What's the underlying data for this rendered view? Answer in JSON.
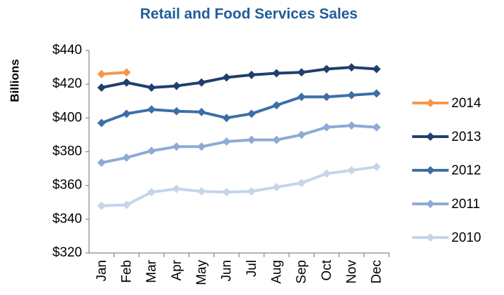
{
  "chart_data": {
    "type": "line",
    "title": "Retail and Food Services Sales",
    "y_label": "Billions",
    "categories": [
      "Jan",
      "Feb",
      "Mar",
      "Apr",
      "May",
      "Jun",
      "Jul",
      "Aug",
      "Sep",
      "Oct",
      "Nov",
      "Dec"
    ],
    "series": [
      {
        "name": "2014",
        "color": "#f79646",
        "values": [
          426,
          427,
          null,
          null,
          null,
          null,
          null,
          null,
          null,
          null,
          null,
          null
        ]
      },
      {
        "name": "2013",
        "color": "#1f3f6e",
        "values": [
          418,
          421,
          418,
          419,
          421,
          424,
          425.5,
          426.5,
          427,
          429,
          430,
          429
        ]
      },
      {
        "name": "2012",
        "color": "#3d6ea8",
        "values": [
          397,
          402.5,
          405,
          404,
          403.5,
          400,
          402.5,
          407.5,
          412.5,
          412.5,
          413.5,
          414.5
        ]
      },
      {
        "name": "2011",
        "color": "#8eaad6",
        "values": [
          373.5,
          376.5,
          380.5,
          383,
          383,
          386,
          387,
          387,
          390,
          394.5,
          395.5,
          394.5
        ]
      },
      {
        "name": "2010",
        "color": "#c5d5ea",
        "values": [
          348,
          348.5,
          356,
          358,
          356.5,
          356,
          356.5,
          359,
          361.5,
          367,
          369,
          371
        ]
      }
    ],
    "ylim": [
      320,
      440
    ],
    "yticks": [
      {
        "value": 320,
        "label": "$320"
      },
      {
        "value": 340,
        "label": "$340"
      },
      {
        "value": 360,
        "label": "$360"
      },
      {
        "value": 380,
        "label": "$380"
      },
      {
        "value": 400,
        "label": "$400"
      },
      {
        "value": 420,
        "label": "$420"
      },
      {
        "value": 440,
        "label": "$440"
      }
    ],
    "grid": false,
    "legend": "right"
  }
}
